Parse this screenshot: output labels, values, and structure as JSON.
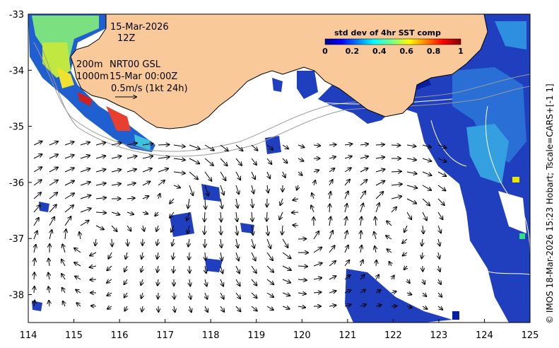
{
  "header": {
    "date": "15-Mar-2026",
    "hour": "12Z",
    "contour_200": "200m",
    "contour_1000": "1000m",
    "product": "NRT00 GSL",
    "product_time": "15-Mar 00:00Z",
    "arrow_scale": "0.5m/s (1kt 24h)"
  },
  "colorbar": {
    "title": "std dev of 4hr SST comp",
    "ticks": [
      "0",
      "0.2",
      "0.4",
      "0.6",
      "0.8",
      "1"
    ]
  },
  "axes": {
    "x_ticks": [
      "114",
      "115",
      "116",
      "117",
      "118",
      "119",
      "120",
      "121",
      "122",
      "123",
      "124",
      "125"
    ],
    "y_ticks": [
      "-33",
      "-34",
      "-35",
      "-36",
      "-37",
      "-38"
    ]
  },
  "credit": "© IMOS 18-Mar-2026 15:23 Hobart; Tscale=CARS+[-1 1]",
  "colors": {
    "land": "#f9c99a",
    "ocean": "#ffffff"
  }
}
